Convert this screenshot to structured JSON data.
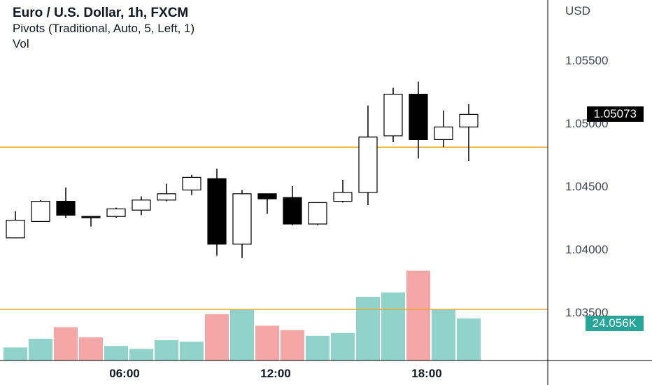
{
  "legend": {
    "title": "Euro / U.S. Dollar, 1h, FXCM",
    "pivots": "Pivots (Traditional, Auto, 5, Left, 1)",
    "vol": "Vol"
  },
  "currency": "USD",
  "price_badge": "1.05073",
  "volume_badge": "24.056K",
  "colors": {
    "up_body": "#ffffff",
    "down_body": "#000000",
    "wick": "#000000",
    "vol_up": "#8fd3cb",
    "vol_down": "#f5a6a6",
    "pivot_line": "#f5a623",
    "axis_line": "#000000",
    "badge_price_bg": "#000000",
    "badge_vol_bg": "#26a69a"
  },
  "chart_data": {
    "type": "candlestick",
    "y_ticks": [
      "1.05500",
      "1.05000",
      "1.04500",
      "1.04000",
      "1.03500"
    ],
    "x_ticks": [
      {
        "label": "06:00",
        "index": 4.5
      },
      {
        "label": "12:00",
        "index": 10.5
      },
      {
        "label": "18:00",
        "index": 16.5
      }
    ],
    "ylim": [
      1.0315,
      1.0575
    ],
    "pivot_level": 1.0481,
    "candles": [
      {
        "o": 1.0409,
        "h": 1.043,
        "l": 1.0409,
        "c": 1.0423,
        "v": 9
      },
      {
        "o": 1.0422,
        "h": 1.0439,
        "l": 1.0422,
        "c": 1.0438,
        "v": 15
      },
      {
        "o": 1.0438,
        "h": 1.0449,
        "l": 1.0425,
        "c": 1.0427,
        "v": 23
      },
      {
        "o": 1.0426,
        "h": 1.0426,
        "l": 1.0418,
        "c": 1.0425,
        "v": 16
      },
      {
        "o": 1.0426,
        "h": 1.0433,
        "l": 1.0425,
        "c": 1.0432,
        "v": 10
      },
      {
        "o": 1.0431,
        "h": 1.0442,
        "l": 1.0427,
        "c": 1.0439,
        "v": 8
      },
      {
        "o": 1.0439,
        "h": 1.0452,
        "l": 1.0438,
        "c": 1.0444,
        "v": 14
      },
      {
        "o": 1.0447,
        "h": 1.0459,
        "l": 1.0443,
        "c": 1.0457,
        "v": 13
      },
      {
        "o": 1.0456,
        "h": 1.0464,
        "l": 1.0395,
        "c": 1.0404,
        "v": 32
      },
      {
        "o": 1.0404,
        "h": 1.0447,
        "l": 1.0393,
        "c": 1.0444,
        "v": 35
      },
      {
        "o": 1.0444,
        "h": 1.0444,
        "l": 1.0428,
        "c": 1.044,
        "v": 24
      },
      {
        "o": 1.0441,
        "h": 1.045,
        "l": 1.0419,
        "c": 1.042,
        "v": 21
      },
      {
        "o": 1.042,
        "h": 1.0437,
        "l": 1.0419,
        "c": 1.0437,
        "v": 17
      },
      {
        "o": 1.0438,
        "h": 1.0455,
        "l": 1.0437,
        "c": 1.0445,
        "v": 19
      },
      {
        "o": 1.0445,
        "h": 1.0514,
        "l": 1.0435,
        "c": 1.0489,
        "v": 44
      },
      {
        "o": 1.049,
        "h": 1.0528,
        "l": 1.0485,
        "c": 1.0523,
        "v": 47
      },
      {
        "o": 1.0523,
        "h": 1.0533,
        "l": 1.0472,
        "c": 1.0487,
        "v": 62
      },
      {
        "o": 1.0487,
        "h": 1.051,
        "l": 1.0481,
        "c": 1.0497,
        "v": 35
      },
      {
        "o": 1.0497,
        "h": 1.0515,
        "l": 1.047,
        "c": 1.0507,
        "v": 29
      }
    ]
  }
}
